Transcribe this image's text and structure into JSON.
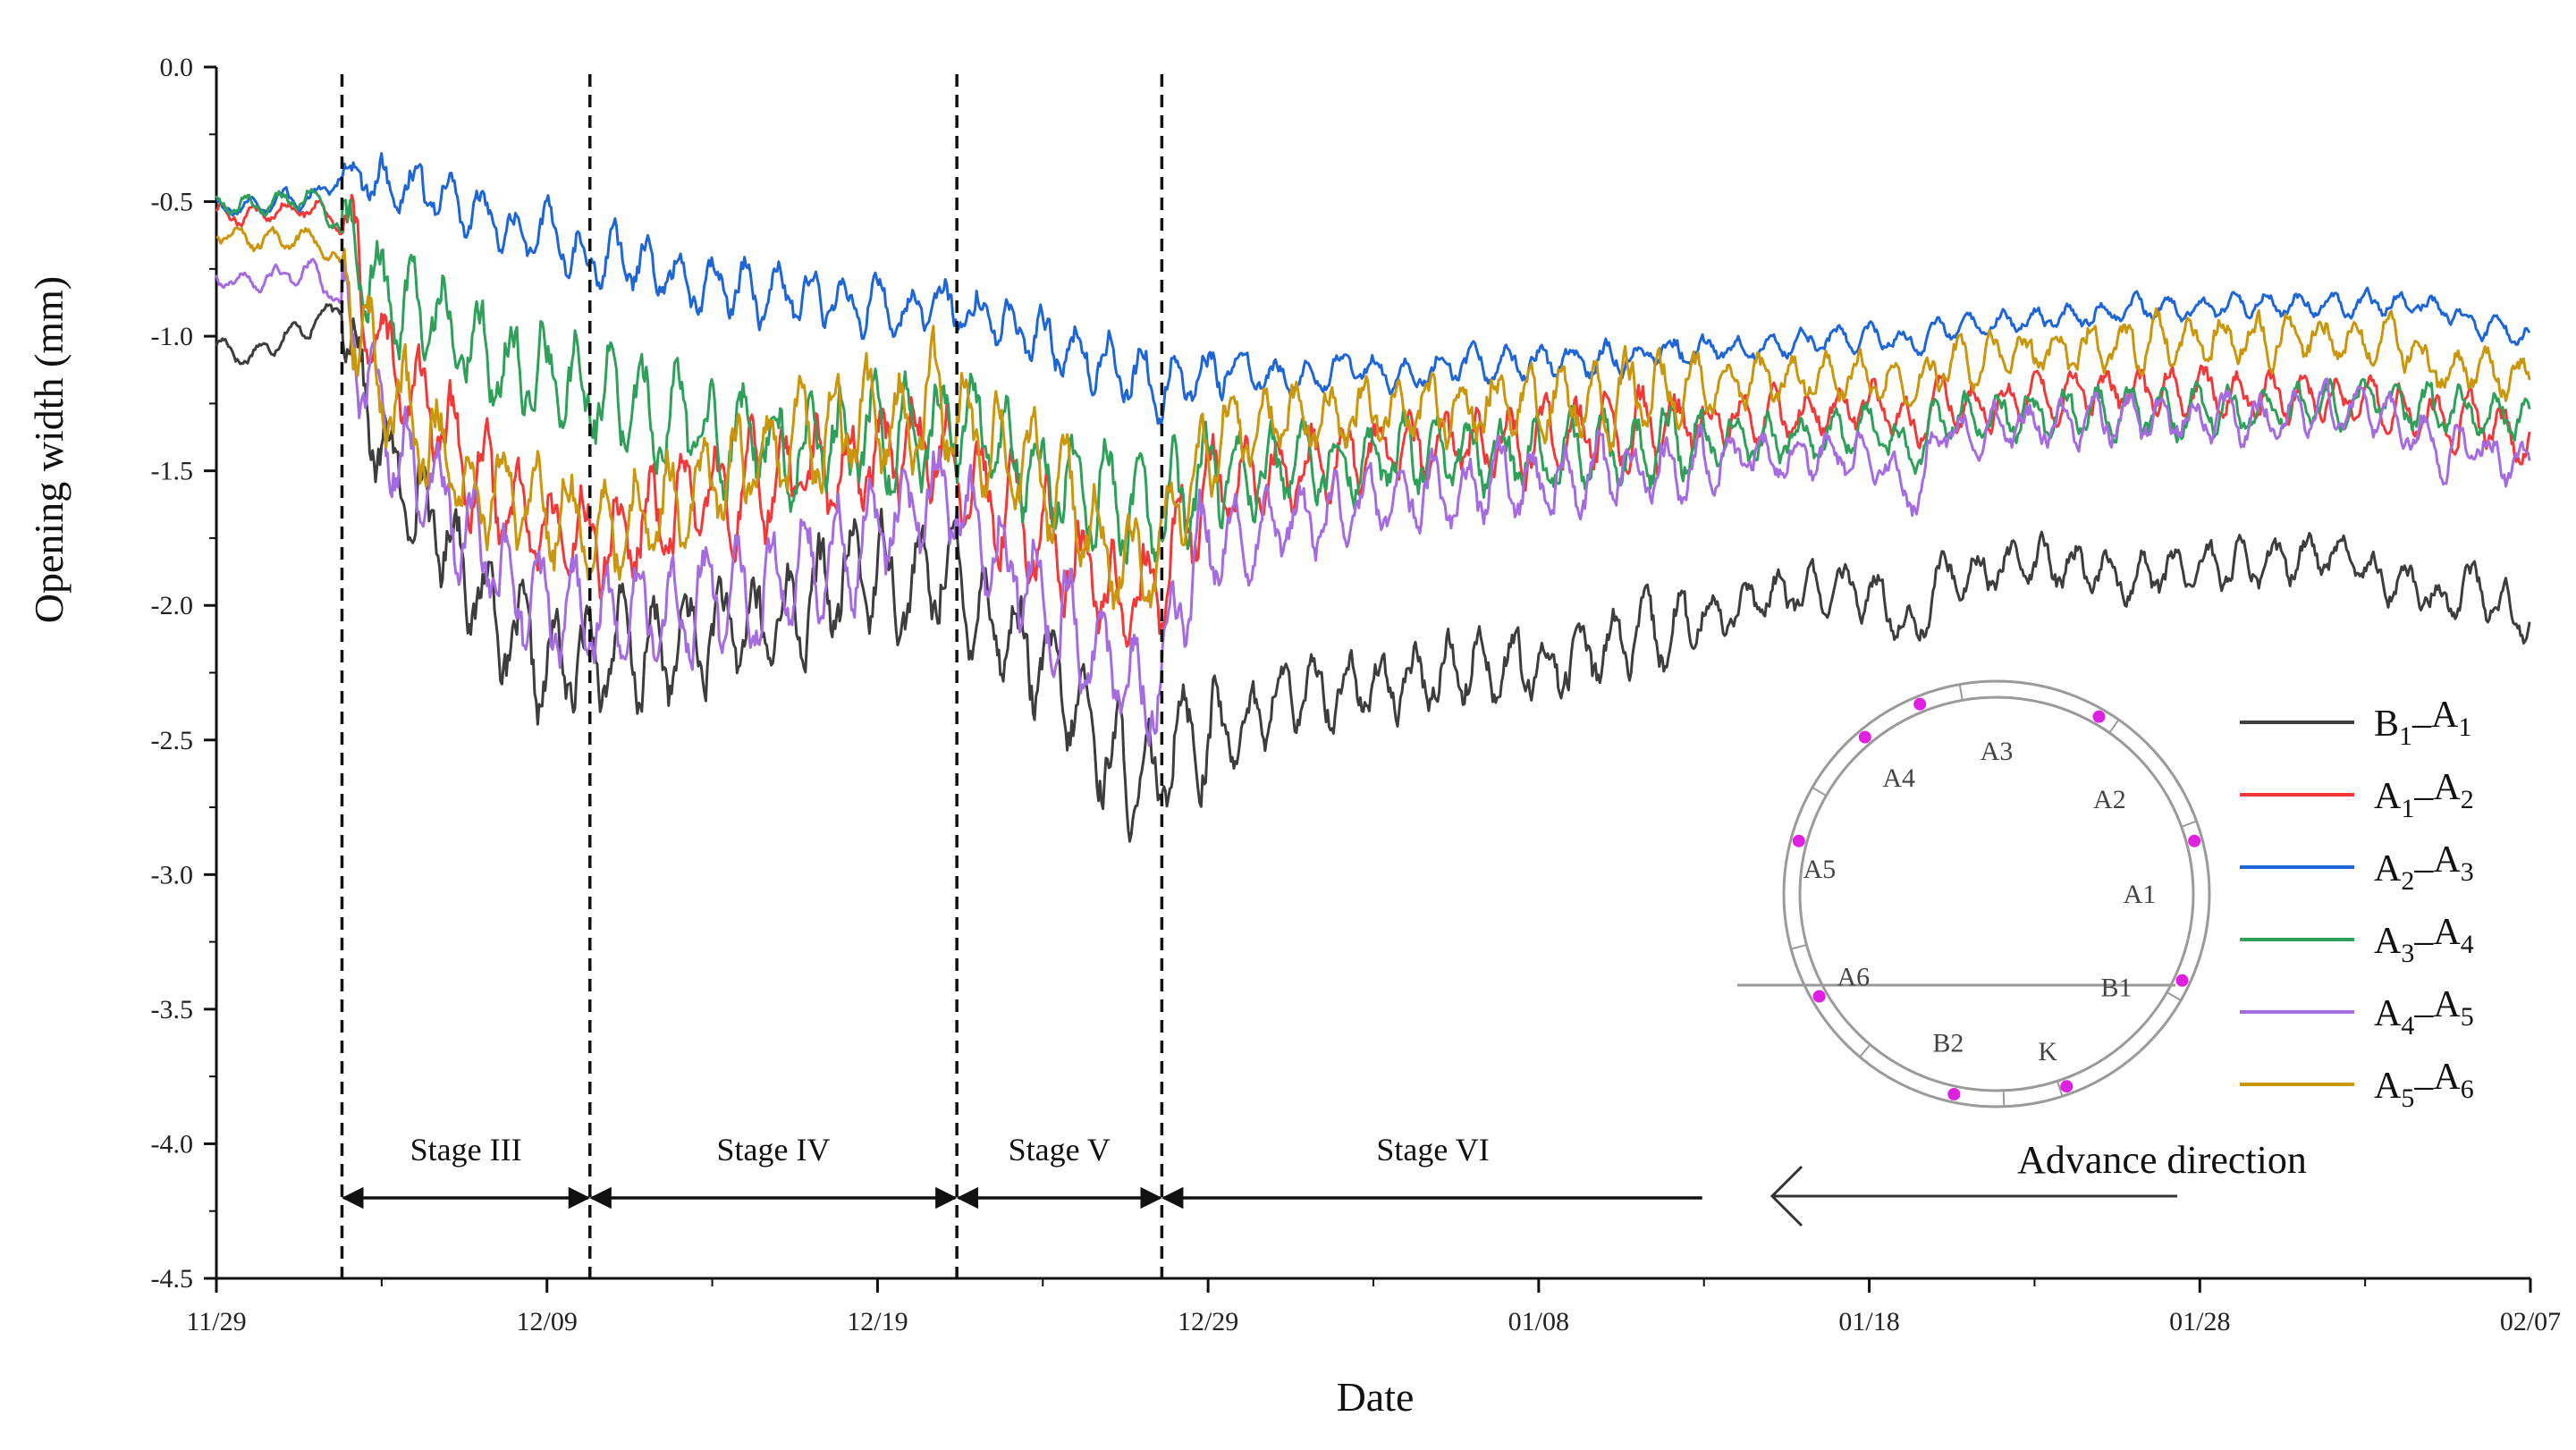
{
  "chart_data": {
    "type": "line",
    "xlabel": "Date",
    "ylabel": "Opening width (mm)",
    "ylim": [
      -4.5,
      0.0
    ],
    "y_ticks": [
      "0.0",
      "-0.5",
      "-1.0",
      "-1.5",
      "-2.0",
      "-2.5",
      "-3.0",
      "-3.5",
      "-4.0",
      "-4.5"
    ],
    "x_range_days": [
      0,
      70
    ],
    "x_ticks": [
      {
        "day": 0,
        "label": "11/29"
      },
      {
        "day": 10,
        "label": "12/09"
      },
      {
        "day": 20,
        "label": "12/19"
      },
      {
        "day": 30,
        "label": "12/29"
      },
      {
        "day": 40,
        "label": "01/08"
      },
      {
        "day": 50,
        "label": "01/18"
      },
      {
        "day": 60,
        "label": "01/28"
      },
      {
        "day": 70,
        "label": "02/07"
      }
    ],
    "stage_boundaries_days": [
      3.8,
      11.3,
      22.4,
      28.6
    ],
    "stages": [
      {
        "label": "Stage III",
        "start": 3.8,
        "end": 11.3
      },
      {
        "label": "Stage IV",
        "start": 11.3,
        "end": 22.4
      },
      {
        "label": "Stage V",
        "start": 22.4,
        "end": 28.6
      },
      {
        "label": "Stage VI",
        "start": 28.6,
        "end": 45
      }
    ],
    "series": [
      {
        "name": "B1–A1",
        "sub": [
          "B",
          "1",
          "A",
          "1"
        ],
        "color": "#3d3d3d",
        "x": [
          0,
          1,
          2,
          3,
          3.8,
          4.5,
          5,
          6,
          7,
          8,
          9,
          10,
          11,
          12,
          13,
          14,
          15,
          16,
          17,
          18,
          19,
          20,
          21,
          22,
          23,
          24,
          25,
          26,
          27,
          28,
          28.6,
          29,
          30,
          31,
          32,
          34,
          36,
          38,
          40,
          42,
          44,
          46,
          48,
          50,
          51.5,
          52,
          54,
          56,
          58,
          60,
          62,
          64,
          66,
          67.5,
          68,
          69,
          70
        ],
        "values": [
          -1.03,
          -1.08,
          -1.0,
          -0.95,
          -0.88,
          -1.2,
          -1.45,
          -1.6,
          -1.75,
          -1.95,
          -2.15,
          -2.25,
          -2.2,
          -2.15,
          -2.2,
          -2.15,
          -2.1,
          -2.1,
          -2.05,
          -2.0,
          -1.9,
          -1.85,
          -1.95,
          -1.85,
          -2.0,
          -2.1,
          -2.25,
          -2.4,
          -2.55,
          -2.7,
          -2.7,
          -2.4,
          -2.5,
          -2.45,
          -2.35,
          -2.3,
          -2.3,
          -2.2,
          -2.25,
          -2.15,
          -2.1,
          -2.0,
          -1.95,
          -1.95,
          -2.1,
          -1.9,
          -1.85,
          -1.85,
          -1.9,
          -1.85,
          -1.85,
          -1.8,
          -1.9,
          -2.0,
          -1.9,
          -2.0,
          -2.05
        ]
      },
      {
        "name": "A1–A2",
        "sub": [
          "A",
          "1",
          "A",
          "2"
        ],
        "color": "#f23838",
        "x": [
          0,
          1,
          2,
          3,
          3.8,
          4.5,
          5,
          6,
          7,
          8,
          9,
          10,
          11,
          12,
          13,
          14,
          15,
          16,
          17,
          18,
          19,
          20,
          21,
          22,
          23,
          24,
          25,
          26,
          27,
          28,
          28.6,
          29,
          30,
          31,
          32,
          34,
          36,
          38,
          40,
          42,
          44,
          46,
          48,
          50,
          51.5,
          52,
          54,
          56,
          58,
          60,
          62,
          64,
          66,
          67.5,
          68,
          69,
          70
        ],
        "values": [
          -0.55,
          -0.55,
          -0.53,
          -0.52,
          -0.6,
          -0.9,
          -1.1,
          -1.25,
          -1.4,
          -1.55,
          -1.65,
          -1.75,
          -1.75,
          -1.75,
          -1.7,
          -1.65,
          -1.65,
          -1.6,
          -1.55,
          -1.55,
          -1.5,
          -1.45,
          -1.4,
          -1.45,
          -1.55,
          -1.65,
          -1.75,
          -1.85,
          -1.95,
          -2.0,
          -2.0,
          -1.75,
          -1.6,
          -1.55,
          -1.5,
          -1.45,
          -1.45,
          -1.4,
          -1.4,
          -1.35,
          -1.35,
          -1.3,
          -1.3,
          -1.25,
          -1.35,
          -1.25,
          -1.25,
          -1.22,
          -1.2,
          -1.2,
          -1.22,
          -1.2,
          -1.25,
          -1.35,
          -1.3,
          -1.35,
          -1.42
        ]
      },
      {
        "name": "A2–A3",
        "sub": [
          "A",
          "2",
          "A",
          "3"
        ],
        "color": "#1e66d6",
        "x": [
          0,
          1,
          2,
          3,
          3.8,
          4.5,
          5,
          6,
          7,
          8,
          9,
          10,
          11,
          12,
          13,
          14,
          15,
          16,
          17,
          18,
          19,
          20,
          21,
          22,
          23,
          24,
          25,
          26,
          27,
          28,
          28.6,
          29,
          30,
          31,
          32,
          34,
          36,
          38,
          40,
          42,
          44,
          46,
          48,
          50,
          51.5,
          52,
          54,
          56,
          58,
          60,
          62,
          64,
          66,
          67.5,
          68,
          69,
          70
        ],
        "values": [
          -0.52,
          -0.52,
          -0.5,
          -0.48,
          -0.4,
          -0.42,
          -0.45,
          -0.45,
          -0.5,
          -0.55,
          -0.6,
          -0.62,
          -0.7,
          -0.72,
          -0.75,
          -0.78,
          -0.8,
          -0.82,
          -0.85,
          -0.85,
          -0.88,
          -0.88,
          -0.9,
          -0.9,
          -0.92,
          -0.95,
          -1.0,
          -1.05,
          -1.1,
          -1.15,
          -1.2,
          -1.15,
          -1.15,
          -1.1,
          -1.15,
          -1.12,
          -1.15,
          -1.1,
          -1.1,
          -1.08,
          -1.05,
          -1.05,
          -1.02,
          -1.0,
          -1.02,
          -0.98,
          -0.95,
          -0.93,
          -0.9,
          -0.9,
          -0.88,
          -0.88,
          -0.88,
          -0.9,
          -0.95,
          -0.97,
          -1.0
        ]
      },
      {
        "name": "A3–A4",
        "sub": [
          "A",
          "3",
          "A",
          "4"
        ],
        "color": "#2ea05a",
        "x": [
          0,
          1,
          2,
          3,
          3.8,
          4.5,
          5,
          6,
          7,
          8,
          9,
          10,
          11,
          12,
          13,
          14,
          15,
          16,
          17,
          18,
          19,
          20,
          21,
          22,
          23,
          24,
          25,
          26,
          27,
          28,
          28.6,
          29,
          30,
          31,
          32,
          34,
          36,
          38,
          40,
          42,
          44,
          46,
          48,
          50,
          51.5,
          52,
          54,
          56,
          58,
          60,
          62,
          64,
          66,
          67.5,
          68,
          69,
          70
        ],
        "values": [
          -0.5,
          -0.52,
          -0.5,
          -0.47,
          -0.62,
          -0.75,
          -0.85,
          -0.92,
          -0.98,
          -1.05,
          -1.1,
          -1.15,
          -1.2,
          -1.25,
          -1.3,
          -1.32,
          -1.35,
          -1.35,
          -1.38,
          -1.4,
          -1.4,
          -1.38,
          -1.38,
          -1.35,
          -1.4,
          -1.45,
          -1.5,
          -1.55,
          -1.6,
          -1.65,
          -1.7,
          -1.6,
          -1.55,
          -1.5,
          -1.5,
          -1.45,
          -1.45,
          -1.45,
          -1.45,
          -1.42,
          -1.4,
          -1.38,
          -1.38,
          -1.35,
          -1.45,
          -1.3,
          -1.3,
          -1.28,
          -1.28,
          -1.28,
          -1.28,
          -1.25,
          -1.25,
          -1.3,
          -1.28,
          -1.3,
          -1.32
        ]
      },
      {
        "name": "A4–A5",
        "sub": [
          "A",
          "4",
          "A",
          "5"
        ],
        "color": "#a56be0",
        "x": [
          0,
          1,
          2,
          3,
          3.8,
          4.5,
          5,
          6,
          7,
          8,
          9,
          10,
          11,
          12,
          13,
          14,
          15,
          16,
          17,
          18,
          19,
          20,
          21,
          22,
          23,
          24,
          25,
          26,
          27,
          28,
          28.6,
          29,
          30,
          31,
          32,
          34,
          36,
          38,
          40,
          42,
          44,
          46,
          48,
          50,
          51.5,
          52,
          54,
          56,
          58,
          60,
          62,
          64,
          66,
          67.5,
          68,
          69,
          70
        ],
        "values": [
          -0.78,
          -0.8,
          -0.78,
          -0.75,
          -0.9,
          -1.15,
          -1.35,
          -1.5,
          -1.65,
          -1.8,
          -1.95,
          -2.05,
          -2.05,
          -2.05,
          -2.05,
          -2.0,
          -1.98,
          -1.95,
          -1.9,
          -1.85,
          -1.8,
          -1.75,
          -1.65,
          -1.6,
          -1.7,
          -1.85,
          -1.95,
          -2.1,
          -2.2,
          -2.3,
          -2.3,
          -2.0,
          -1.8,
          -1.75,
          -1.7,
          -1.65,
          -1.6,
          -1.55,
          -1.55,
          -1.5,
          -1.48,
          -1.45,
          -1.45,
          -1.42,
          -1.6,
          -1.35,
          -1.35,
          -1.32,
          -1.3,
          -1.3,
          -1.3,
          -1.28,
          -1.3,
          -1.45,
          -1.4,
          -1.45,
          -1.5
        ]
      },
      {
        "name": "A5–A6",
        "sub": [
          "A",
          "5",
          "A",
          "6"
        ],
        "color": "#c9960c",
        "x": [
          0,
          1,
          2,
          3,
          3.8,
          4.5,
          5,
          6,
          7,
          8,
          9,
          10,
          11,
          12,
          13,
          14,
          15,
          16,
          17,
          18,
          19,
          20,
          21,
          22,
          23,
          24,
          25,
          26,
          27,
          28,
          28.6,
          29,
          30,
          31,
          32,
          34,
          36,
          38,
          40,
          42,
          44,
          46,
          48,
          50,
          51.5,
          52,
          54,
          56,
          58,
          60,
          62,
          64,
          66,
          67.5,
          68,
          69,
          70
        ],
        "values": [
          -0.62,
          -0.65,
          -0.65,
          -0.64,
          -0.75,
          -1.0,
          -1.2,
          -1.35,
          -1.45,
          -1.55,
          -1.6,
          -1.65,
          -1.7,
          -1.7,
          -1.65,
          -1.6,
          -1.55,
          -1.5,
          -1.45,
          -1.4,
          -1.35,
          -1.3,
          -1.3,
          -1.25,
          -1.35,
          -1.45,
          -1.55,
          -1.65,
          -1.8,
          -1.85,
          -1.85,
          -1.55,
          -1.4,
          -1.35,
          -1.3,
          -1.3,
          -1.28,
          -1.25,
          -1.25,
          -1.22,
          -1.2,
          -1.18,
          -1.15,
          -1.15,
          -1.2,
          -1.1,
          -1.08,
          -1.05,
          -1.02,
          -1.0,
          -1.0,
          -1.0,
          -1.02,
          -1.15,
          -1.1,
          -1.15,
          -1.18
        ]
      }
    ],
    "inset": {
      "segments": [
        "A3",
        "A2",
        "A1",
        "B1",
        "K",
        "B2",
        "A6",
        "A5",
        "A4"
      ],
      "advance_label": "Advance direction"
    }
  }
}
